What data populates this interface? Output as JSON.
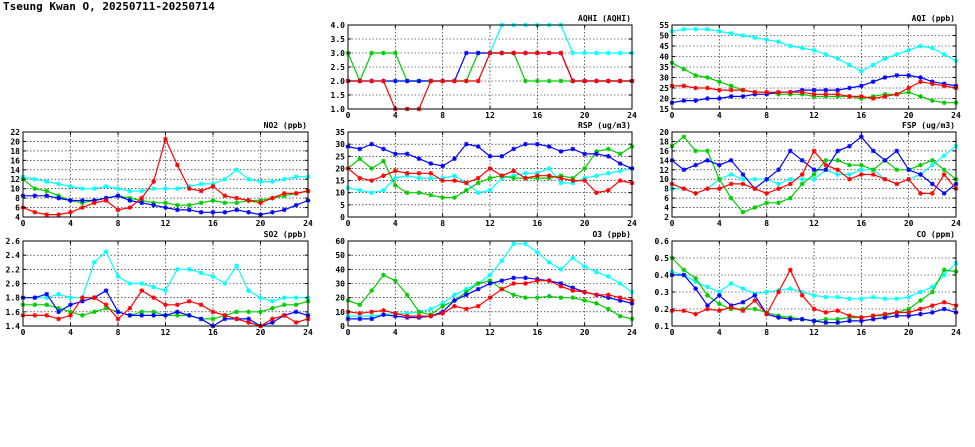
{
  "page": {
    "title": "Tseung Kwan O, 20250711-20250714"
  },
  "series_colors": {
    "day1": "#00ffff",
    "day2": "#00cc00",
    "day3": "#0000ff",
    "day4": "#ff0000"
  },
  "chart_data": [
    {
      "id": "aqhi",
      "type": "line",
      "title": "AQHI (AQHI)",
      "xlim": [
        0,
        24
      ],
      "xticks": [
        0,
        4,
        8,
        12,
        16,
        20,
        24
      ],
      "ylim": [
        1.0,
        4.0
      ],
      "yticks": [
        1.0,
        1.5,
        2.0,
        2.5,
        3.0,
        3.5,
        4.0
      ],
      "ydec": 1,
      "grid": true,
      "series": [
        {
          "color": "#00ffff",
          "values": [
            2,
            2,
            2,
            2,
            2,
            2,
            2,
            2,
            2,
            2,
            2,
            2,
            3,
            4,
            4,
            4,
            4,
            4,
            4,
            3,
            3,
            3,
            3,
            3,
            3
          ]
        },
        {
          "color": "#00cc00",
          "values": [
            3,
            2,
            3,
            3,
            3,
            2,
            2,
            2,
            2,
            2,
            2,
            3,
            3,
            3,
            3,
            2,
            2,
            2,
            2,
            2,
            2,
            2,
            2,
            2,
            2
          ]
        },
        {
          "color": "#0000ff",
          "values": [
            2,
            2,
            2,
            2,
            2,
            2,
            2,
            2,
            2,
            2,
            3,
            3,
            3,
            3,
            3,
            3,
            3,
            3,
            3,
            2,
            2,
            2,
            2,
            2,
            2
          ]
        },
        {
          "color": "#ff0000",
          "values": [
            2,
            2,
            2,
            2,
            1,
            1,
            1,
            2,
            2,
            2,
            2,
            2,
            3,
            3,
            3,
            3,
            3,
            3,
            3,
            2,
            2,
            2,
            2,
            2,
            2
          ]
        }
      ]
    },
    {
      "id": "aqi",
      "type": "line",
      "title": "AQI (ppb)",
      "xlim": [
        0,
        24
      ],
      "xticks": [
        0,
        4,
        8,
        12,
        16,
        20,
        24
      ],
      "ylim": [
        15,
        55
      ],
      "yticks": [
        15,
        20,
        25,
        30,
        35,
        40,
        45,
        50,
        55
      ],
      "ydec": 0,
      "grid": true,
      "series": [
        {
          "color": "#00ffff",
          "values": [
            52,
            53,
            53,
            53,
            52,
            51,
            50,
            49,
            48,
            47,
            45,
            44,
            43,
            41,
            39,
            36,
            33,
            36,
            39,
            41,
            43,
            45,
            44,
            41,
            38
          ]
        },
        {
          "color": "#00cc00",
          "values": [
            37,
            34,
            31,
            30,
            28,
            26,
            24,
            23,
            23,
            22,
            22,
            22,
            21,
            21,
            21,
            21,
            20,
            21,
            22,
            22,
            23,
            21,
            19,
            18,
            18
          ]
        },
        {
          "color": "#0000ff",
          "values": [
            18,
            19,
            19,
            20,
            20,
            21,
            21,
            22,
            22,
            23,
            23,
            24,
            24,
            24,
            24,
            25,
            26,
            28,
            30,
            31,
            31,
            30,
            28,
            27,
            26
          ]
        },
        {
          "color": "#ff0000",
          "values": [
            26,
            26,
            25,
            25,
            24,
            24,
            24,
            23,
            23,
            23,
            23,
            23,
            22,
            22,
            22,
            21,
            21,
            20,
            21,
            22,
            25,
            28,
            27,
            26,
            25
          ]
        }
      ]
    },
    {
      "id": "no2",
      "type": "line",
      "title": "NO2 (ppb)",
      "xlim": [
        0,
        24
      ],
      "xticks": [
        0,
        4,
        8,
        12,
        16,
        20,
        24
      ],
      "ylim": [
        4,
        22
      ],
      "yticks": [
        4,
        6,
        8,
        10,
        12,
        14,
        16,
        18,
        20,
        22
      ],
      "ydec": 0,
      "grid": true,
      "series": [
        {
          "color": "#00ffff",
          "values": [
            12.5,
            12,
            11.5,
            11,
            10.5,
            10,
            10,
            10.5,
            10,
            9.5,
            9.5,
            10,
            10,
            10,
            10.5,
            11,
            11,
            12,
            14,
            12,
            11.5,
            11.5,
            12,
            12.5,
            12.5
          ]
        },
        {
          "color": "#00cc00",
          "values": [
            12,
            10,
            9.5,
            8.5,
            7.5,
            7,
            7.5,
            8,
            8.5,
            8,
            7.5,
            7,
            7,
            6.5,
            6.5,
            7,
            7.5,
            7,
            7,
            7.5,
            7.5,
            8,
            8.5,
            9,
            9.5
          ]
        },
        {
          "color": "#0000ff",
          "values": [
            8.5,
            8.5,
            8.5,
            8,
            7.5,
            7.5,
            7.5,
            8,
            8.5,
            7.5,
            7,
            6.5,
            6,
            5.5,
            5.5,
            5,
            5,
            5,
            5.5,
            5,
            4.5,
            5,
            5.5,
            6.5,
            7.5
          ]
        },
        {
          "color": "#ff0000",
          "values": [
            6,
            5,
            4.5,
            4.5,
            5,
            6,
            7,
            7.5,
            5.5,
            6,
            8,
            11.5,
            20.5,
            15,
            10,
            9.5,
            10.5,
            8.5,
            8,
            7.5,
            7,
            8,
            9,
            9,
            9.5
          ]
        }
      ]
    },
    {
      "id": "rsp",
      "type": "line",
      "title": "RSP (ug/m3)",
      "xlim": [
        0,
        24
      ],
      "xticks": [
        0,
        4,
        8,
        12,
        16,
        20,
        24
      ],
      "ylim": [
        0,
        35
      ],
      "yticks": [
        0,
        5,
        10,
        15,
        20,
        25,
        30,
        35
      ],
      "ydec": 0,
      "grid": true,
      "series": [
        {
          "color": "#00ffff",
          "values": [
            12,
            11,
            10,
            11,
            16,
            17,
            16,
            16,
            16,
            17,
            14,
            10,
            11,
            16,
            17,
            18,
            18,
            20,
            14,
            14,
            16,
            17,
            18,
            19,
            20
          ]
        },
        {
          "color": "#00cc00",
          "values": [
            20,
            24,
            20,
            23,
            13,
            10,
            10,
            9,
            8,
            8,
            11,
            14,
            16,
            17,
            16,
            16,
            16,
            16,
            17,
            16,
            20,
            27,
            28,
            26,
            29
          ]
        },
        {
          "color": "#0000ff",
          "values": [
            29,
            28,
            30,
            28,
            26,
            26,
            24,
            22,
            21,
            24,
            30,
            29,
            25,
            25,
            28,
            30,
            30,
            29,
            27,
            28,
            26,
            26,
            25,
            22,
            20
          ]
        },
        {
          "color": "#ff0000",
          "values": [
            20,
            16,
            15,
            17,
            19,
            18,
            18,
            18,
            15,
            15,
            14,
            16,
            20,
            17,
            19,
            16,
            17,
            17,
            16,
            15,
            15,
            10,
            11,
            15,
            14
          ]
        }
      ]
    },
    {
      "id": "fsp",
      "type": "line",
      "title": "FSP (ug/m3)",
      "xlim": [
        0,
        24
      ],
      "xticks": [
        0,
        4,
        8,
        12,
        16,
        20,
        24
      ],
      "ylim": [
        2,
        20
      ],
      "yticks": [
        2,
        4,
        6,
        8,
        10,
        12,
        14,
        16,
        18,
        20
      ],
      "ydec": 0,
      "grid": true,
      "series": [
        {
          "color": "#00ffff",
          "values": [
            8,
            8,
            7,
            8,
            10,
            11,
            10,
            10,
            10,
            9,
            10,
            10,
            10,
            12,
            11,
            11,
            12,
            12,
            10,
            9,
            10,
            11,
            13,
            15,
            17
          ]
        },
        {
          "color": "#00cc00",
          "values": [
            17,
            19,
            16,
            16,
            10,
            6,
            3,
            4,
            5,
            5,
            6,
            9,
            11,
            14,
            14,
            13,
            13,
            12,
            14,
            12,
            12,
            13,
            14,
            12,
            10
          ]
        },
        {
          "color": "#0000ff",
          "values": [
            14,
            12,
            13,
            14,
            13,
            14,
            11,
            8,
            10,
            12,
            16,
            14,
            12,
            12,
            16,
            17,
            19,
            16,
            14,
            16,
            12,
            11,
            9,
            7,
            9
          ]
        },
        {
          "color": "#ff0000",
          "values": [
            9,
            8,
            7,
            8,
            8,
            9,
            9,
            8,
            7,
            8,
            9,
            11,
            16,
            13,
            12,
            10,
            11,
            11,
            10,
            9,
            10,
            7,
            7,
            11,
            8
          ]
        }
      ]
    },
    {
      "id": "so2",
      "type": "line",
      "title": "SO2 (ppb)",
      "xlim": [
        0,
        24
      ],
      "xticks": [
        0,
        4,
        8,
        12,
        16,
        20,
        24
      ],
      "ylim": [
        1.4,
        2.6
      ],
      "yticks": [
        1.4,
        1.6,
        1.8,
        2.0,
        2.2,
        2.4,
        2.6
      ],
      "ydec": 1,
      "grid": true,
      "series": [
        {
          "color": "#00ffff",
          "values": [
            1.8,
            1.8,
            1.8,
            1.85,
            1.8,
            1.8,
            2.3,
            2.45,
            2.1,
            2.0,
            2.0,
            1.95,
            1.9,
            2.2,
            2.2,
            2.15,
            2.1,
            2.0,
            2.25,
            1.9,
            1.8,
            1.75,
            1.8,
            1.8,
            1.8
          ]
        },
        {
          "color": "#00cc00",
          "values": [
            1.7,
            1.7,
            1.7,
            1.65,
            1.6,
            1.55,
            1.6,
            1.65,
            1.6,
            1.55,
            1.6,
            1.6,
            1.55,
            1.55,
            1.55,
            1.5,
            1.5,
            1.55,
            1.6,
            1.6,
            1.6,
            1.65,
            1.7,
            1.7,
            1.75
          ]
        },
        {
          "color": "#0000ff",
          "values": [
            1.8,
            1.8,
            1.85,
            1.6,
            1.7,
            1.75,
            1.8,
            1.9,
            1.6,
            1.55,
            1.55,
            1.55,
            1.55,
            1.6,
            1.55,
            1.5,
            1.4,
            1.5,
            1.5,
            1.5,
            1.4,
            1.45,
            1.55,
            1.6,
            1.55
          ]
        },
        {
          "color": "#ff0000",
          "values": [
            1.55,
            1.55,
            1.55,
            1.5,
            1.55,
            1.8,
            1.8,
            1.7,
            1.5,
            1.65,
            1.9,
            1.8,
            1.7,
            1.7,
            1.75,
            1.7,
            1.6,
            1.55,
            1.5,
            1.45,
            1.4,
            1.5,
            1.55,
            1.45,
            1.5
          ]
        }
      ]
    },
    {
      "id": "o3",
      "type": "line",
      "title": "O3 (ppb)",
      "xlim": [
        0,
        24
      ],
      "xticks": [
        0,
        4,
        8,
        12,
        16,
        20,
        24
      ],
      "ylim": [
        0,
        60
      ],
      "yticks": [
        0,
        10,
        20,
        30,
        40,
        50,
        60
      ],
      "ydec": 0,
      "grid": true,
      "series": [
        {
          "color": "#00ffff",
          "values": [
            7,
            7,
            7,
            8,
            9,
            9,
            10,
            12,
            16,
            22,
            26,
            30,
            36,
            46,
            58,
            58,
            52,
            45,
            40,
            48,
            42,
            38,
            35,
            30,
            24
          ]
        },
        {
          "color": "#00cc00",
          "values": [
            18,
            15,
            25,
            36,
            32,
            22,
            10,
            8,
            14,
            18,
            24,
            30,
            32,
            26,
            22,
            20,
            20,
            21,
            20,
            20,
            18,
            16,
            12,
            7,
            5
          ]
        },
        {
          "color": "#0000ff",
          "values": [
            5,
            5,
            5,
            8,
            7,
            6,
            6,
            7,
            10,
            18,
            22,
            26,
            30,
            32,
            34,
            34,
            33,
            32,
            30,
            27,
            24,
            22,
            20,
            18,
            16
          ]
        },
        {
          "color": "#ff0000",
          "values": [
            10,
            9,
            10,
            11,
            9,
            7,
            7,
            7,
            9,
            14,
            12,
            14,
            20,
            26,
            30,
            30,
            32,
            32,
            28,
            25,
            24,
            22,
            22,
            20,
            18
          ]
        }
      ]
    },
    {
      "id": "co",
      "type": "line",
      "title": "CO (ppm)",
      "xlim": [
        0,
        24
      ],
      "xticks": [
        0,
        4,
        8,
        12,
        16,
        20,
        24
      ],
      "ylim": [
        0.1,
        0.6
      ],
      "yticks": [
        0.1,
        0.2,
        0.3,
        0.4,
        0.5,
        0.6
      ],
      "ydec": 1,
      "grid": true,
      "series": [
        {
          "color": "#00ffff",
          "values": [
            0.42,
            0.4,
            0.36,
            0.33,
            0.3,
            0.35,
            0.32,
            0.29,
            0.3,
            0.31,
            0.32,
            0.3,
            0.28,
            0.27,
            0.27,
            0.26,
            0.26,
            0.27,
            0.26,
            0.26,
            0.27,
            0.3,
            0.33,
            0.4,
            0.47
          ]
        },
        {
          "color": "#00cc00",
          "values": [
            0.5,
            0.43,
            0.38,
            0.28,
            0.23,
            0.2,
            0.2,
            0.2,
            0.18,
            0.16,
            0.15,
            0.14,
            0.13,
            0.14,
            0.14,
            0.15,
            0.15,
            0.16,
            0.16,
            0.18,
            0.2,
            0.25,
            0.3,
            0.43,
            0.42
          ]
        },
        {
          "color": "#0000ff",
          "values": [
            0.4,
            0.4,
            0.32,
            0.22,
            0.28,
            0.22,
            0.24,
            0.28,
            0.17,
            0.15,
            0.14,
            0.14,
            0.13,
            0.12,
            0.12,
            0.13,
            0.13,
            0.14,
            0.15,
            0.16,
            0.16,
            0.17,
            0.18,
            0.2,
            0.18
          ]
        },
        {
          "color": "#ff0000",
          "values": [
            0.19,
            0.19,
            0.17,
            0.2,
            0.19,
            0.21,
            0.19,
            0.25,
            0.17,
            0.3,
            0.43,
            0.28,
            0.2,
            0.18,
            0.19,
            0.16,
            0.15,
            0.16,
            0.17,
            0.18,
            0.18,
            0.2,
            0.22,
            0.24,
            0.22
          ]
        }
      ]
    }
  ]
}
